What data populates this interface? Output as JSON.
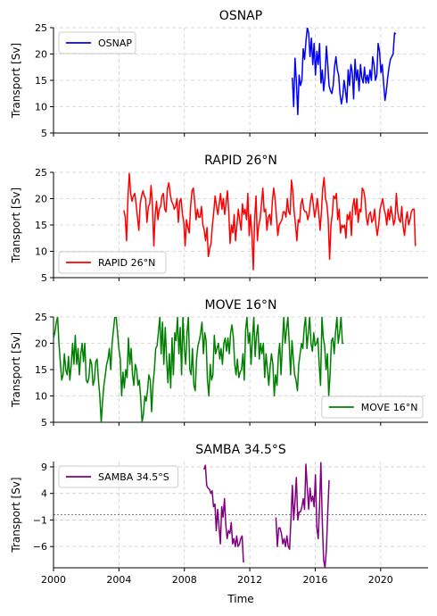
{
  "chart_data": [
    {
      "type": "line",
      "title": "OSNAP",
      "ylabel": "Transport [Sv]",
      "xlabel": "",
      "xlim": [
        2000,
        2022.9
      ],
      "ylim": [
        5,
        25
      ],
      "yticks": [
        5,
        10,
        15,
        20,
        25
      ],
      "ytick_labels": [
        "5",
        "10",
        "15",
        "20",
        "25"
      ],
      "grid": true,
      "legend": "upper left",
      "zero_line": false,
      "series": [
        {
          "name": "OSNAP",
          "color": "#0000ff",
          "start": 2014.6,
          "step": 0.0833,
          "values": [
            15.5,
            10.0,
            19.2,
            14.5,
            8.5,
            16.0,
            14.0,
            15.0,
            21.0,
            19.0,
            22.5,
            25.0,
            24.0,
            19.5,
            23.0,
            18.0,
            22.0,
            16.0,
            20.5,
            18.0,
            22.0,
            14.5,
            17.0,
            13.0,
            15.5,
            21.5,
            18.0,
            14.0,
            13.0,
            12.5,
            14.0,
            17.5,
            19.5,
            17.0,
            16.0,
            12.5,
            10.5,
            12.0,
            15.0,
            13.0,
            10.8,
            17.0,
            14.0,
            18.0,
            16.5,
            11.5,
            19.0,
            15.0,
            17.0,
            13.0,
            18.0,
            15.5,
            14.5,
            17.5,
            14.5,
            16.0,
            14.5,
            17.0,
            15.0,
            19.5,
            18.0,
            15.0,
            16.0,
            22.0,
            20.5,
            16.5,
            18.0,
            14.5,
            11.2,
            13.0,
            15.5,
            17.5,
            19.0,
            19.5,
            20.0,
            24.0,
            23.8
          ]
        }
      ]
    },
    {
      "type": "line",
      "title": "RAPID 26°N",
      "ylabel": "Transport [Sv]",
      "xlabel": "",
      "xlim": [
        2000,
        2022.9
      ],
      "ylim": [
        5,
        25
      ],
      "yticks": [
        5,
        10,
        15,
        20,
        25
      ],
      "ytick_labels": [
        "5",
        "10",
        "15",
        "20",
        "25"
      ],
      "grid": true,
      "legend": "lower left",
      "zero_line": false,
      "series": [
        {
          "name": "RAPID 26°N",
          "color": "#ff0000",
          "start": 2004.3,
          "step": 0.0833,
          "values": [
            17.8,
            16.5,
            12.0,
            20.0,
            24.8,
            21.0,
            19.5,
            20.5,
            21.0,
            19.0,
            16.5,
            14.0,
            19.0,
            20.5,
            21.5,
            20.5,
            20.0,
            15.5,
            18.5,
            19.0,
            22.5,
            19.0,
            11.0,
            17.0,
            19.5,
            16.0,
            18.0,
            18.5,
            20.5,
            21.0,
            18.0,
            17.5,
            22.0,
            23.0,
            21.0,
            19.5,
            19.0,
            18.0,
            18.5,
            20.0,
            15.5,
            19.5,
            20.0,
            17.0,
            15.5,
            11.0,
            16.0,
            14.5,
            13.5,
            18.5,
            21.5,
            22.0,
            19.5,
            16.0,
            18.0,
            16.5,
            16.5,
            18.5,
            15.0,
            14.0,
            12.0,
            14.5,
            9.0,
            10.5,
            11.5,
            15.0,
            17.5,
            20.5,
            18.5,
            17.0,
            19.0,
            21.0,
            18.0,
            20.0,
            17.0,
            19.0,
            21.5,
            17.5,
            11.5,
            15.0,
            13.5,
            17.0,
            12.0,
            15.0,
            18.0,
            16.0,
            14.0,
            19.0,
            17.0,
            18.0,
            16.0,
            21.0,
            13.0,
            17.0,
            13.0,
            6.5,
            16.0,
            20.5,
            12.0,
            15.0,
            16.0,
            19.0,
            22.0,
            17.5,
            18.0,
            14.0,
            16.5,
            17.0,
            15.0,
            19.5,
            22.0,
            20.0,
            16.5,
            13.0,
            15.0,
            15.5,
            16.0,
            17.5,
            17.5,
            16.5,
            20.0,
            17.5,
            17.0,
            23.5,
            21.5,
            17.5,
            15.0,
            12.0,
            16.0,
            15.5,
            19.0,
            20.0,
            18.0,
            17.5,
            17.5,
            16.0,
            17.0,
            19.5,
            21.0,
            19.0,
            16.5,
            18.0,
            20.0,
            17.5,
            14.0,
            17.5,
            22.0,
            24.0,
            20.0,
            19.0,
            16.0,
            8.5,
            15.0,
            17.0,
            20.5,
            20.0,
            21.0,
            16.0,
            18.0,
            13.5,
            15.0,
            14.5,
            15.0,
            12.5,
            17.0,
            16.0,
            17.5,
            13.0,
            18.5,
            20.0,
            17.0,
            20.0,
            15.5,
            18.0,
            17.5,
            22.0,
            21.5,
            20.0,
            16.5,
            15.0,
            17.0,
            17.5,
            15.5,
            16.0,
            18.0,
            15.0,
            13.0,
            15.0,
            18.0,
            19.0,
            20.0,
            18.0,
            17.0,
            15.0,
            18.0,
            16.0,
            18.5,
            17.0,
            15.0,
            16.0,
            21.0,
            17.5,
            16.0,
            15.5,
            18.5,
            14.5,
            13.0,
            16.0,
            17.5,
            15.0,
            16.0,
            17.5,
            18.0,
            18.0,
            11.0
          ]
        }
      ]
    },
    {
      "type": "line",
      "title": "MOVE 16°N",
      "ylabel": "Transport [Sv]",
      "xlabel": "",
      "xlim": [
        2000,
        2022.9
      ],
      "ylim": [
        5,
        25
      ],
      "yticks": [
        5,
        10,
        15,
        20,
        25
      ],
      "ytick_labels": [
        "5",
        "10",
        "15",
        "20",
        "25"
      ],
      "grid": true,
      "legend": "lower right",
      "zero_line": false,
      "series": [
        {
          "name": "MOVE 16°N",
          "color": "#008000",
          "start": 2000.0,
          "step": 0.0833,
          "values": [
            21.0,
            22.0,
            24.0,
            25.0,
            20.0,
            16.5,
            13.0,
            14.0,
            18.0,
            15.0,
            14.0,
            17.5,
            13.0,
            16.0,
            20.0,
            16.0,
            21.5,
            16.0,
            19.0,
            14.0,
            18.0,
            20.0,
            16.5,
            20.0,
            13.0,
            12.5,
            13.5,
            17.0,
            16.0,
            12.0,
            13.0,
            16.5,
            17.0,
            13.0,
            10.0,
            5.0,
            9.0,
            12.0,
            14.0,
            16.0,
            17.0,
            19.0,
            15.0,
            20.0,
            22.5,
            25.0,
            25.0,
            22.0,
            19.0,
            17.0,
            10.0,
            14.5,
            11.5,
            15.0,
            13.5,
            21.0,
            16.0,
            19.0,
            14.0,
            12.0,
            16.0,
            15.0,
            12.0,
            13.0,
            9.5,
            5.0,
            6.5,
            10.0,
            9.0,
            11.0,
            14.0,
            13.0,
            7.0,
            12.0,
            15.0,
            19.0,
            19.5,
            22.0,
            25.0,
            18.0,
            24.0,
            16.0,
            23.0,
            17.0,
            12.5,
            18.0,
            11.5,
            21.0,
            14.0,
            22.0,
            20.5,
            25.0,
            18.0,
            23.0,
            14.0,
            25.0,
            19.0,
            16.0,
            22.0,
            25.0,
            15.0,
            14.0,
            19.0,
            12.0,
            11.0,
            17.0,
            19.5,
            20.5,
            22.0,
            24.0,
            18.0,
            22.0,
            20.5,
            13.0,
            10.0,
            16.0,
            13.0,
            14.0,
            21.5,
            18.0,
            19.0,
            20.0,
            17.0,
            19.0,
            16.0,
            20.0,
            21.0,
            18.5,
            21.0,
            18.0,
            22.0,
            23.5,
            21.0,
            16.0,
            14.0,
            17.0,
            13.5,
            14.5,
            15.0,
            18.0,
            13.0,
            22.5,
            25.0,
            20.0,
            22.0,
            16.0,
            21.0,
            25.0,
            17.5,
            21.5,
            23.5,
            17.0,
            20.0,
            18.0,
            20.0,
            13.5,
            18.0,
            15.0,
            12.0,
            15.5,
            18.0,
            16.0,
            10.0,
            14.0,
            12.0,
            17.5,
            20.0,
            14.0,
            20.0,
            25.0,
            20.0,
            22.5,
            25.0,
            20.0,
            14.0,
            20.5,
            17.0,
            14.0,
            13.0,
            11.0,
            16.0,
            18.0,
            20.0,
            19.0,
            23.0,
            25.0,
            19.0,
            22.0,
            25.0,
            20.0,
            18.5,
            22.0,
            19.5,
            20.0,
            21.0,
            16.0,
            12.0,
            25.0,
            21.0,
            19.5,
            15.0,
            18.0,
            10.0,
            14.0,
            20.5,
            21.0,
            18.0,
            22.0,
            25.0,
            20.0,
            22.0,
            25.0,
            20.0,
            20.0
          ]
        }
      ]
    },
    {
      "type": "line",
      "title": "SAMBA 34.5°S",
      "ylabel": "Transport [Sv]",
      "xlabel": "Time",
      "xlim": [
        2000,
        2022.9
      ],
      "ylim": [
        -10,
        10
      ],
      "yticks": [
        -6,
        -1,
        4,
        9
      ],
      "ytick_labels": [
        "−6",
        "−1",
        "4",
        "9"
      ],
      "xticks": [
        2000,
        2004,
        2008,
        2012,
        2016,
        2020
      ],
      "xtick_labels": [
        "2000",
        "2004",
        "2008",
        "2012",
        "2016",
        "2020"
      ],
      "grid": true,
      "legend": "upper left",
      "zero_line": true,
      "series": [
        {
          "name": "SAMBA 34.5°S",
          "color": "#800080",
          "segments": [
            {
              "start": 2009.2,
              "step": 0.0833,
              "values": [
                8.5,
                9.3,
                5.5,
                5.0,
                4.8,
                4.0,
                4.5,
                1.5,
                2.0,
                -3.0,
                1.0,
                -2.0,
                -5.5,
                1.5,
                -0.5,
                3.0,
                -2.0,
                -4.5,
                -3.0,
                -3.5,
                -1.5,
                -5.5,
                -4.5,
                -6.0,
                -4.0,
                -6.0,
                -5.5,
                -4.5,
                -4.0,
                -9.0
              ]
            },
            {
              "start": 2013.6,
              "step": 0.0833,
              "values": [
                -0.5,
                -6.0,
                -2.5,
                -2.5,
                -3.5,
                -5.5,
                -4.5,
                -6.0,
                -4.0,
                -6.0,
                -6.5,
                -1.0,
                5.5,
                -1.0,
                2.5,
                7.0,
                -1.0,
                0.5,
                0.5,
                1.5,
                3.0,
                1.0,
                9.5,
                5.0,
                1.0,
                5.0,
                2.5,
                3.5,
                1.5,
                7.5,
                -2.5,
                -4.5,
                1.5,
                9.8,
                -1.5,
                -8.5,
                -10.0,
                -6.5,
                0.5,
                6.5
              ]
            }
          ]
        }
      ]
    }
  ],
  "shared_xaxis": {
    "xticks": [
      2000,
      2004,
      2008,
      2012,
      2016,
      2020
    ],
    "xtick_labels": [
      "2000",
      "2004",
      "2008",
      "2012",
      "2016",
      "2020"
    ],
    "xlabel": "Time"
  }
}
